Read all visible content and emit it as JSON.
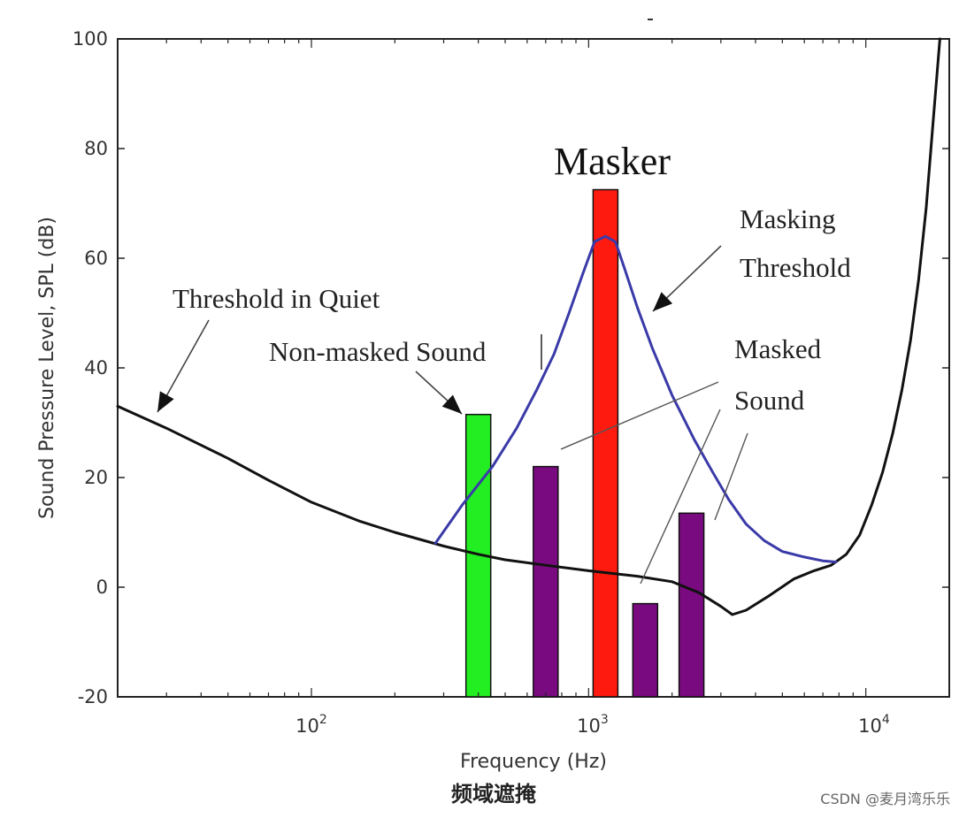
{
  "chart_data": {
    "type": "bar",
    "title": "",
    "xlabel": "Frequency (Hz)",
    "ylabel": "Sound Pressure Level, SPL (dB)",
    "xscale": "log",
    "xlim": [
      20,
      20000
    ],
    "ylim": [
      -20,
      100
    ],
    "yticks": [
      "-20",
      "0",
      "20",
      "40",
      "60",
      "80",
      "100"
    ],
    "xticks": [
      {
        "value": 100,
        "base": "10",
        "exp": "2"
      },
      {
        "value": 1000,
        "base": "10",
        "exp": "3"
      },
      {
        "value": 10000,
        "base": "10",
        "exp": "4"
      }
    ],
    "grid": false,
    "bars": [
      {
        "name": "Non-masked Sound",
        "freq": 400,
        "value": 31.5,
        "color": "#22ee22"
      },
      {
        "name": "Masked Sound 1",
        "freq": 700,
        "value": 22,
        "color": "#7a0a80"
      },
      {
        "name": "Masker",
        "freq": 1150,
        "value": 72.5,
        "color": "#ff1a10"
      },
      {
        "name": "Masked Sound 2",
        "freq": 1600,
        "value": -3,
        "color": "#7a0a80"
      },
      {
        "name": "Masked Sound 3",
        "freq": 2350,
        "value": 13.5,
        "color": "#7a0a80"
      }
    ],
    "series": [
      {
        "name": "Threshold in Quiet",
        "color": "#111111",
        "x": [
          20,
          30,
          50,
          70,
          100,
          150,
          200,
          300,
          400,
          500,
          700,
          1000,
          1500,
          2000,
          2500,
          3000,
          3300,
          3700,
          4500,
          5500,
          6500,
          7500,
          8500,
          9500,
          10500,
          11500,
          12500,
          13500,
          14500,
          15500,
          16500,
          17500,
          18500
        ],
        "y": [
          33,
          29,
          23.5,
          19.5,
          15.5,
          12,
          10,
          7.5,
          6,
          5,
          4,
          3,
          2,
          1,
          -1,
          -3.5,
          -5,
          -4.2,
          -1.5,
          1.5,
          3,
          4,
          6,
          9.5,
          15,
          21,
          28,
          36,
          45,
          56,
          69,
          85,
          100
        ]
      },
      {
        "name": "Masking Threshold",
        "color": "#3a3aa8",
        "x": [
          280,
          350,
          450,
          550,
          650,
          750,
          850,
          950,
          1050,
          1150,
          1250,
          1350,
          1500,
          1700,
          2000,
          2400,
          2800,
          3200,
          3700,
          4300,
          5000,
          6000,
          7000,
          7800
        ],
        "y": [
          8,
          15,
          22,
          29,
          36,
          42.5,
          50,
          57,
          63,
          64,
          63,
          58,
          51,
          43.5,
          35,
          27,
          21,
          16,
          11.5,
          8.5,
          6.5,
          5.5,
          4.8,
          4.6
        ]
      }
    ],
    "annotations": {
      "masker": "Masker",
      "masking_threshold_line1": "Masking",
      "masking_threshold_line2": "Threshold",
      "threshold_in_quiet": "Threshold in Quiet",
      "non_masked_sound": "Non-masked Sound",
      "masked_sound_line1": "Masked",
      "masked_sound_line2": "Sound"
    },
    "caption": "频域遮掩",
    "watermark": "CSDN @麦月湾乐乐"
  },
  "colors": {
    "axis": "#222222",
    "background": "#ffffff"
  }
}
